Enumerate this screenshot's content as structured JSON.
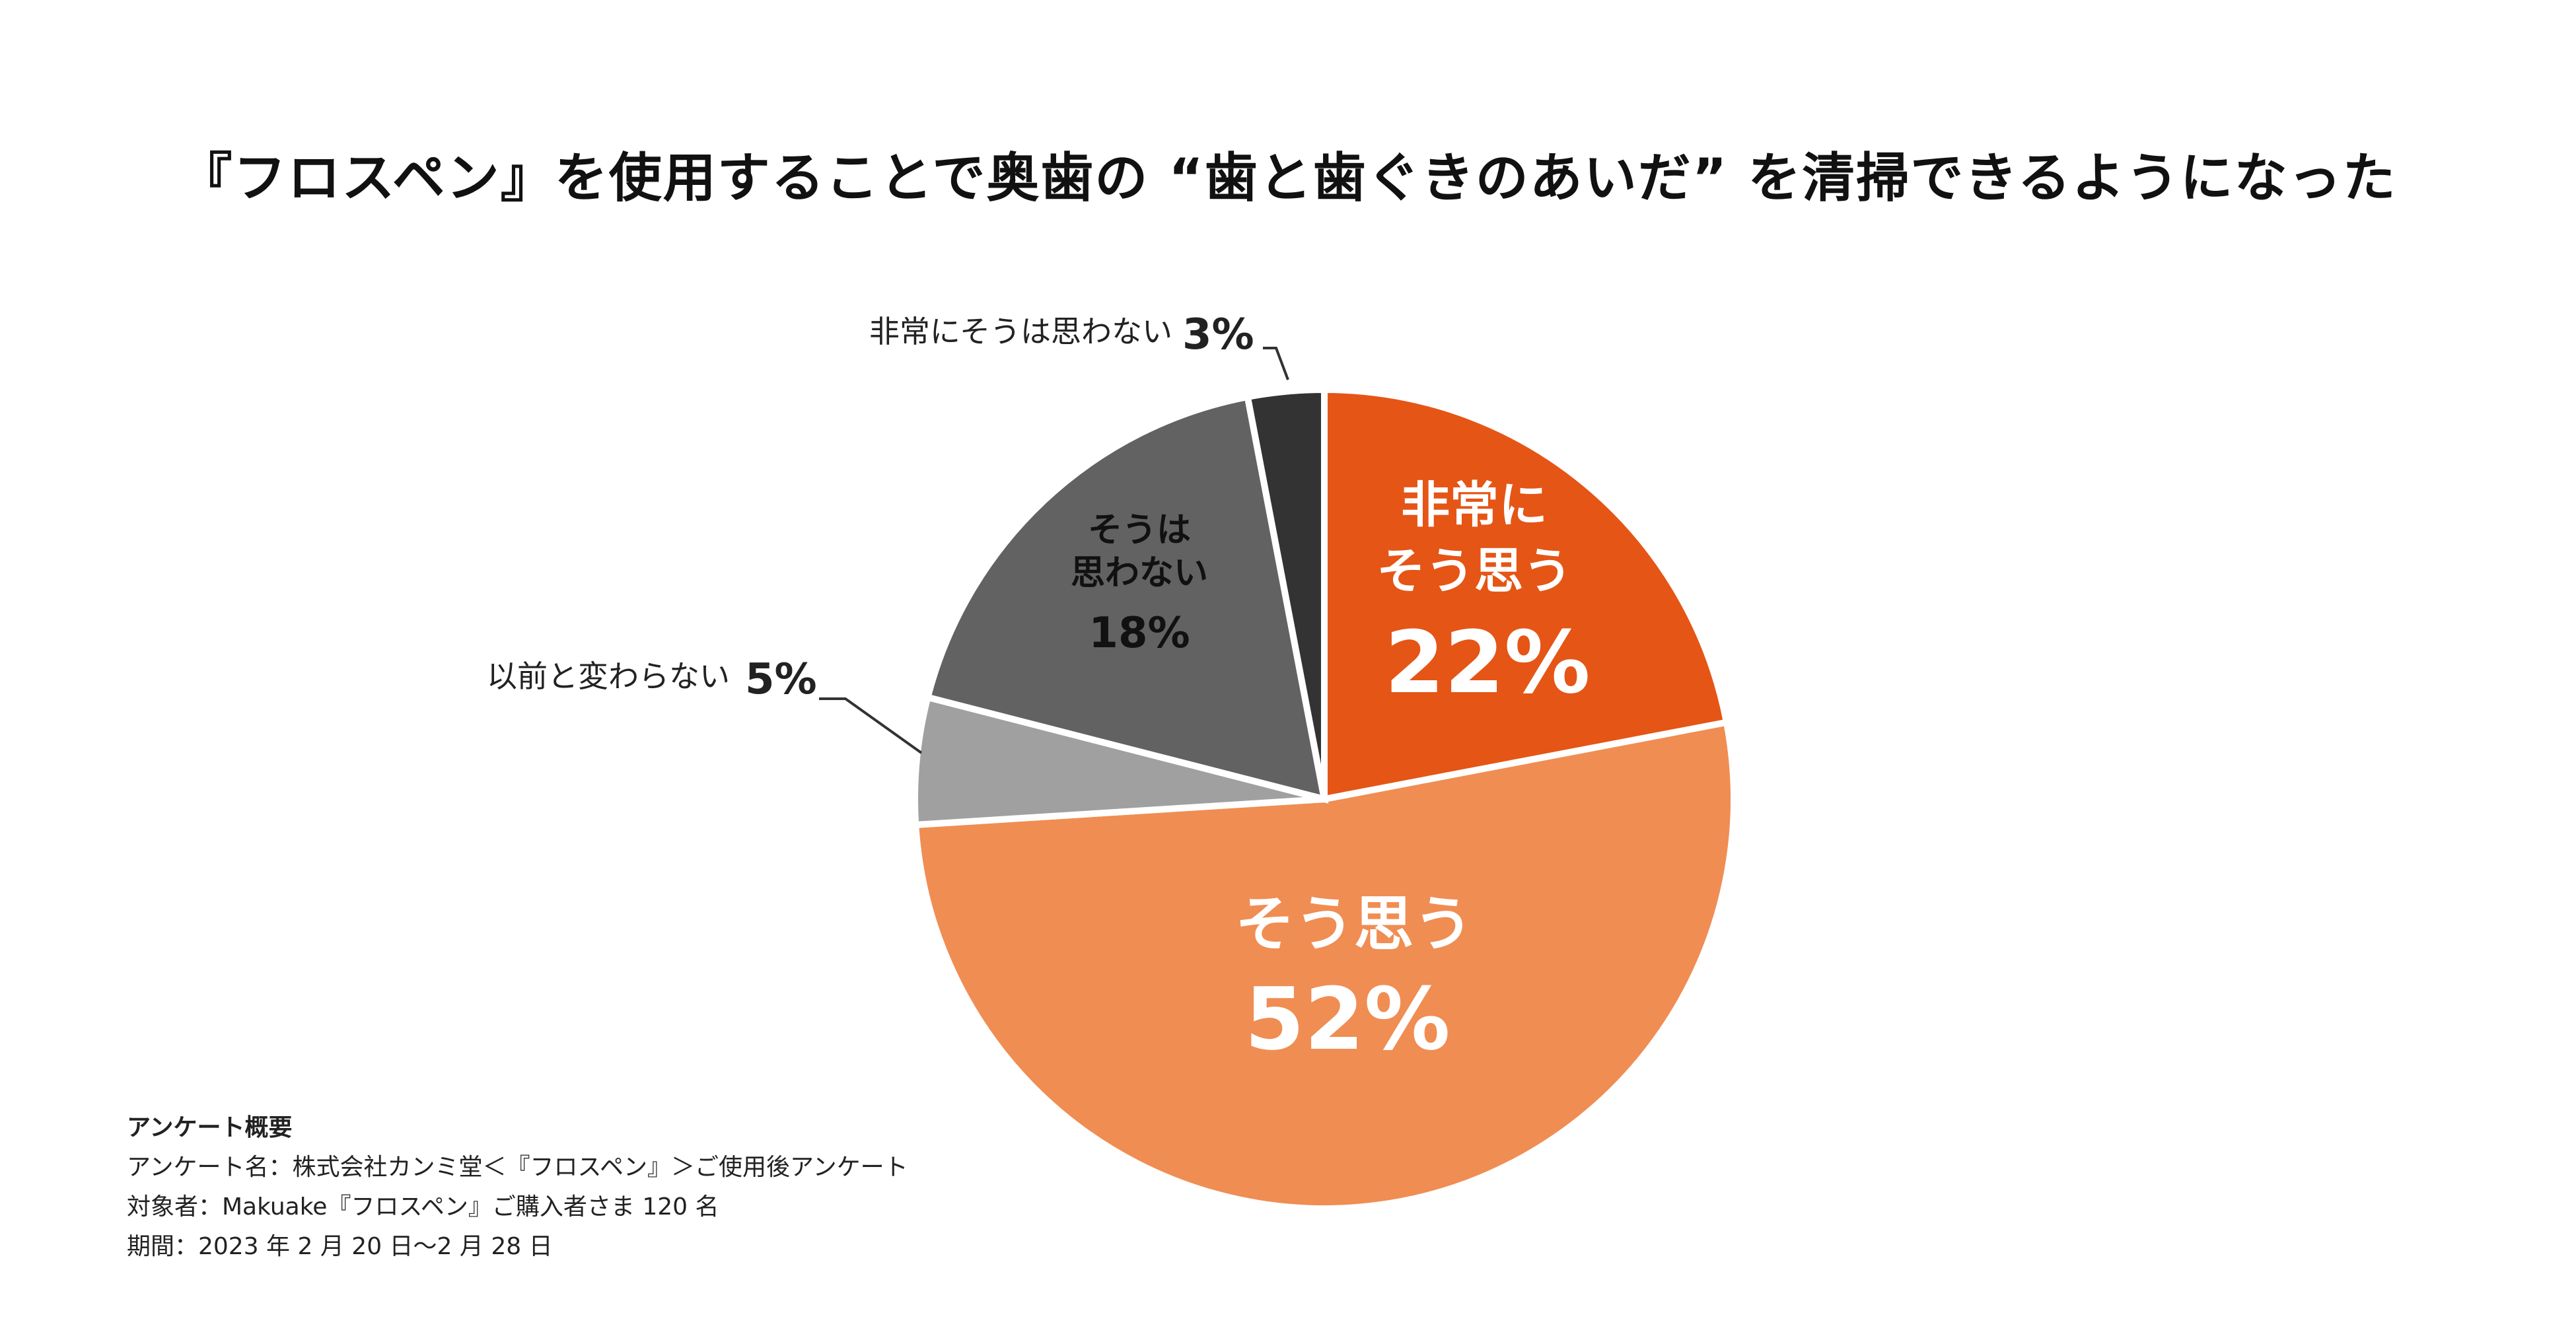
{
  "title": "『フロスペン』を使用することで奥歯の “歯と歯ぐきのあいだ” を清掃できるようになった",
  "chart_data": {
    "type": "pie",
    "title": "『フロスペン』を使用することで奥歯の “歯と歯ぐきのあいだ” を清掃できるようになった",
    "start_angle_deg": 0,
    "direction": "clockwise",
    "slices": [
      {
        "key": "strongly_agree",
        "label_lines": [
          "非常に",
          "そう思う"
        ],
        "percent_label": "22%",
        "value": 22,
        "color": "#E55516",
        "label_color": "#FFFFFF",
        "label_placement": "inside"
      },
      {
        "key": "agree",
        "label_lines": [
          "そう思う"
        ],
        "percent_label": "52%",
        "value": 52,
        "color": "#F08D53",
        "label_color": "#FFFFFF",
        "label_placement": "inside"
      },
      {
        "key": "no_change",
        "label_lines": [
          "以前と変わらない"
        ],
        "percent_label": "5%",
        "value": 5,
        "color": "#9FA09F",
        "label_color": "#222222",
        "label_placement": "outside-left"
      },
      {
        "key": "disagree",
        "label_lines": [
          "そうは",
          "思わない"
        ],
        "percent_label": "18%",
        "value": 18,
        "color": "#636262",
        "label_color": "#111111",
        "label_placement": "inside"
      },
      {
        "key": "strongly_disagree",
        "label_lines": [
          "非常にそうは思わない"
        ],
        "percent_label": "3%",
        "value": 3,
        "color": "#333333",
        "label_color": "#222222",
        "label_placement": "outside-top"
      }
    ]
  },
  "survey": {
    "heading": "アンケート概要",
    "name": "アンケート名：株式会社カンミ堂＜『フロスペン』＞ご使用後アンケート",
    "target": "対象者：Makuake『フロスペン』ご購入者さま 120 名",
    "period": "期間：2023 年 2 月 20 日～2 月 28 日"
  }
}
